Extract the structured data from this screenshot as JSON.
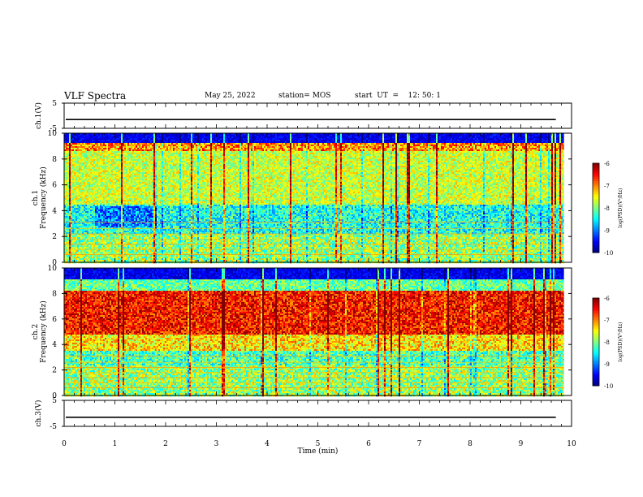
{
  "header": {
    "title": "VLF Spectra",
    "date": "May 25, 2022",
    "station": "station= MOS",
    "start": "start  UT  =    12: 50: 1"
  },
  "chart_data": [
    {
      "type": "line",
      "panel": "ch1-waveform",
      "ylabel": "ch.1(V)",
      "yticks": [
        "5",
        "-5"
      ],
      "ylim": [
        -5,
        5
      ],
      "x": [
        0,
        10
      ],
      "series": [
        {
          "values": [
            -1.5,
            -1.5
          ]
        }
      ]
    },
    {
      "type": "heatmap",
      "panel": "ch1-spectrogram",
      "ylabel": "ch.1\nFrequency (kHz)",
      "ylim": [
        0,
        10
      ],
      "yticks": [
        "0",
        "2",
        "4",
        "6",
        "8",
        "10"
      ],
      "xlim": [
        0,
        9.85
      ],
      "dominant_band_khz": [
        2,
        9
      ],
      "colorbar": {
        "label": "log(PSD)(V²/Hz)",
        "ticks": [
          "-6",
          "-7",
          "-8",
          "-9",
          "-10"
        ],
        "range": [
          -10,
          -6
        ]
      }
    },
    {
      "type": "heatmap",
      "panel": "ch2-spectrogram",
      "ylabel": "ch.2\nFrequency (kHz)",
      "ylim": [
        0,
        10
      ],
      "yticks": [
        "0",
        "2",
        "4",
        "6",
        "8",
        "10"
      ],
      "xlim": [
        0,
        9.85
      ],
      "dominant_band_khz": [
        5,
        8
      ],
      "colorbar": {
        "label": "log(PSD)(V²/Hz)",
        "ticks": [
          "-6",
          "-7",
          "-8",
          "-9",
          "-10"
        ],
        "range": [
          -10,
          -6
        ]
      }
    },
    {
      "type": "line",
      "panel": "ch3-waveform",
      "ylabel": "ch.3(V)",
      "yticks": [
        "5",
        "-5"
      ],
      "ylim": [
        -5,
        5
      ],
      "x": [
        0,
        10
      ],
      "series": [
        {
          "values": [
            -1.5,
            -1.5
          ]
        }
      ]
    }
  ],
  "xaxis": {
    "label": "Time  (min)",
    "ticks": [
      "0",
      "1",
      "2",
      "3",
      "4",
      "5",
      "6",
      "7",
      "8",
      "9",
      "10"
    ],
    "range": [
      0,
      10
    ]
  }
}
